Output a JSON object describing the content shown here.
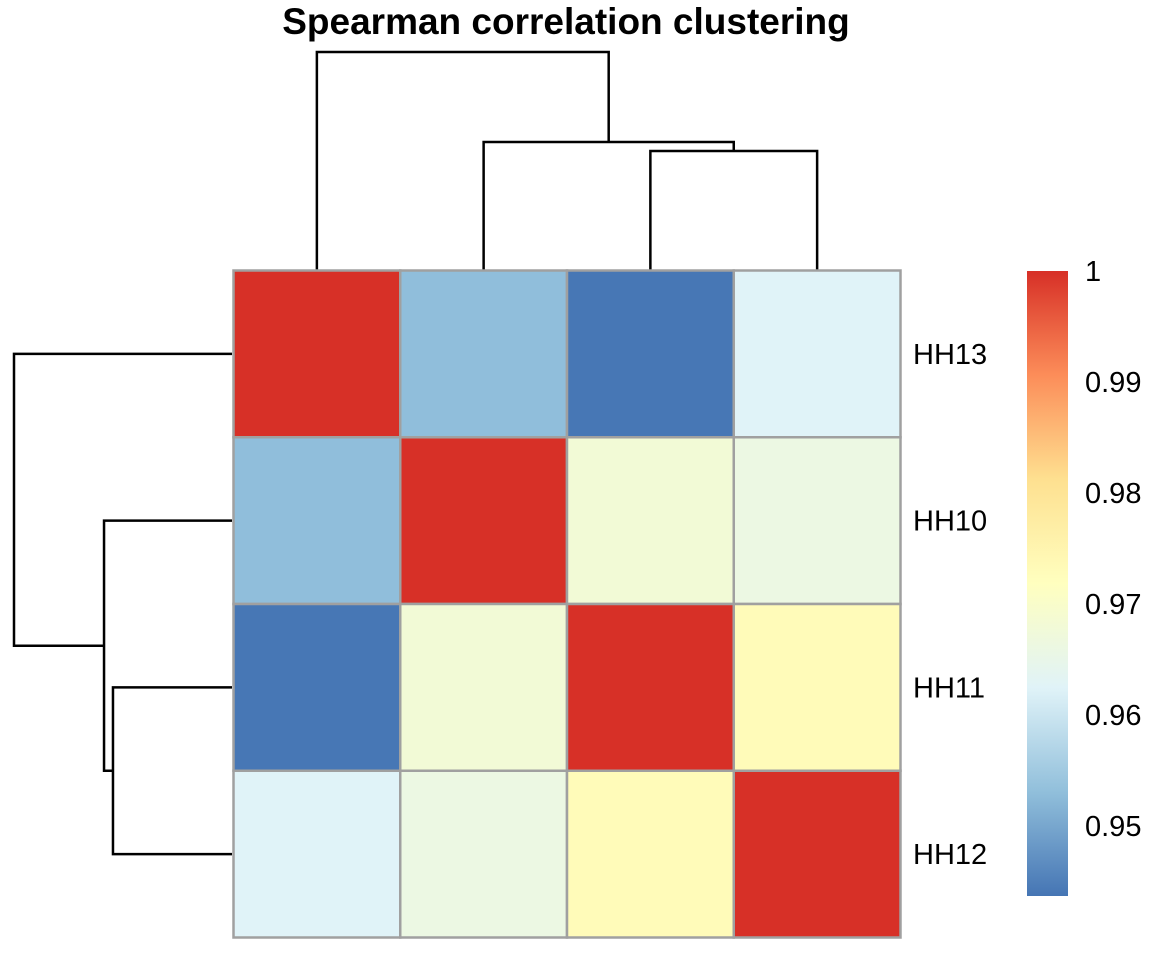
{
  "chart_data": {
    "type": "heatmap",
    "title": "Spearman correlation clustering",
    "rows": [
      "HH13",
      "HH10",
      "HH11",
      "HH12"
    ],
    "columns": [
      "HH13",
      "HH10",
      "HH11",
      "HH12"
    ],
    "values": [
      [
        1.0,
        0.953,
        0.944,
        0.9625
      ],
      [
        0.953,
        1.0,
        0.968,
        0.966
      ],
      [
        0.944,
        0.968,
        1.0,
        0.973
      ],
      [
        0.9625,
        0.966,
        0.973,
        1.0
      ]
    ],
    "color_range": [
      0.9437,
      1.0
    ],
    "color_stops": [
      "#4575B4",
      "#91BFDB",
      "#E0F3F8",
      "#FFFFBF",
      "#FEE090",
      "#FC8D59",
      "#D73027"
    ],
    "cell_border_color": "#A0A0A0",
    "legend": {
      "position": "right",
      "ticks": [
        1,
        0.99,
        0.98,
        0.97,
        0.96,
        0.95
      ],
      "tick_labels": [
        "1",
        "0.99",
        "0.98",
        "0.97",
        "0.96",
        "0.95"
      ]
    },
    "dendrogram": {
      "merges": [
        {
          "left": "HH11",
          "right": "HH12",
          "height": 0.546
        },
        {
          "left": "HH10",
          "right": "HH11+HH12",
          "height": 0.587
        },
        {
          "left": "HH13",
          "right": "HH10+HH11+HH12",
          "height": 1.0
        }
      ]
    }
  }
}
